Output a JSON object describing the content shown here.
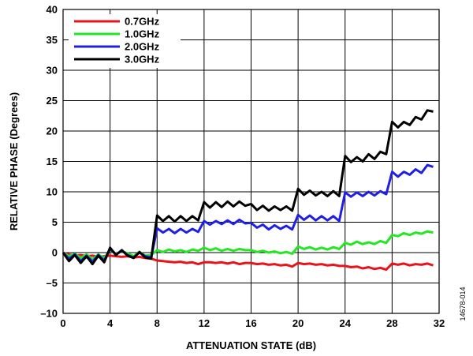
{
  "chart_data": {
    "type": "line",
    "xlabel": "ATTENUATION STATE (dB)",
    "ylabel": "RELATIVE PHASE (Degrees)",
    "xlim": [
      0,
      32
    ],
    "ylim": [
      -10,
      40
    ],
    "xticks": [
      0,
      4,
      8,
      12,
      16,
      20,
      24,
      28,
      32
    ],
    "yticks": [
      -10,
      -5,
      0,
      5,
      10,
      15,
      20,
      25,
      30,
      35,
      40
    ],
    "grid": true,
    "legend_position": "top-left",
    "x": [
      0,
      0.5,
      1,
      1.5,
      2,
      2.5,
      3,
      3.5,
      4,
      4.5,
      5,
      5.5,
      6,
      6.5,
      7,
      7.5,
      8,
      8.5,
      9,
      9.5,
      10,
      10.5,
      11,
      11.5,
      12,
      12.5,
      13,
      13.5,
      14,
      14.5,
      15,
      15.5,
      16,
      16.5,
      17,
      17.5,
      18,
      18.5,
      19,
      19.5,
      20,
      20.5,
      21,
      21.5,
      22,
      22.5,
      23,
      23.5,
      24,
      24.5,
      25,
      25.5,
      26,
      26.5,
      27,
      27.5,
      28,
      28.5,
      29,
      29.5,
      30,
      30.5,
      31,
      31.5
    ],
    "series": [
      {
        "name": "0.7GHz",
        "color": "#e8141b",
        "values": [
          0,
          -0.3,
          -0.5,
          -0.4,
          -0.6,
          -0.5,
          -0.7,
          -0.6,
          -0.5,
          -0.6,
          -0.7,
          -0.6,
          -0.8,
          -0.7,
          -0.9,
          -1.0,
          -1.3,
          -1.4,
          -1.5,
          -1.6,
          -1.5,
          -1.7,
          -1.6,
          -1.9,
          -1.6,
          -1.6,
          -1.7,
          -1.6,
          -1.8,
          -1.6,
          -1.9,
          -1.7,
          -1.7,
          -1.9,
          -1.8,
          -2.0,
          -1.9,
          -2.1,
          -2.0,
          -2.3,
          -1.7,
          -1.9,
          -1.8,
          -2.0,
          -1.9,
          -2.1,
          -2.0,
          -2.2,
          -2.2,
          -2.4,
          -2.3,
          -2.6,
          -2.4,
          -2.7,
          -2.5,
          -2.8,
          -1.8,
          -2.0,
          -1.8,
          -2.1,
          -1.9,
          -2.0,
          -1.8,
          -2.1
        ]
      },
      {
        "name": "1.0GHz",
        "color": "#22e822",
        "values": [
          0,
          -0.6,
          -0.2,
          -0.9,
          -0.3,
          -1.1,
          -0.3,
          -0.9,
          0.4,
          -0.2,
          0.2,
          -0.1,
          -0.6,
          0.1,
          -0.5,
          -0.4,
          0.4,
          0.1,
          0.5,
          0.2,
          0.4,
          0.1,
          0.5,
          0.3,
          0.8,
          0.4,
          0.7,
          0.3,
          0.6,
          0.3,
          0.6,
          0.4,
          0.4,
          0.1,
          0.3,
          0.0,
          0.2,
          -0.1,
          0.1,
          -0.2,
          1.0,
          0.6,
          0.9,
          0.5,
          0.8,
          0.5,
          0.9,
          0.6,
          1.6,
          1.3,
          1.8,
          1.4,
          1.7,
          1.4,
          1.9,
          1.6,
          2.9,
          2.7,
          3.2,
          2.9,
          3.3,
          3.1,
          3.5,
          3.3
        ]
      },
      {
        "name": "2.0GHz",
        "color": "#1f1fe8",
        "values": [
          0,
          -1.0,
          -0.3,
          -1.4,
          -0.5,
          -1.5,
          -0.4,
          -1.3,
          0.6,
          -0.3,
          0.3,
          -0.4,
          -0.8,
          0.0,
          -0.6,
          -0.8,
          4.0,
          3.3,
          3.9,
          3.2,
          3.9,
          3.3,
          3.9,
          3.4,
          5.2,
          4.6,
          5.2,
          4.7,
          5.3,
          4.7,
          5.4,
          4.8,
          4.9,
          4.1,
          4.6,
          3.8,
          4.5,
          3.9,
          4.4,
          3.8,
          6.2,
          5.4,
          6.1,
          5.3,
          6.0,
          5.3,
          6.0,
          5.2,
          9.9,
          9.2,
          9.9,
          9.3,
          10.0,
          9.4,
          10.1,
          9.6,
          13.3,
          12.5,
          13.3,
          12.8,
          13.7,
          13.1,
          14.4,
          14.1
        ]
      },
      {
        "name": "3.0GHz",
        "color": "#000000",
        "values": [
          0,
          -1.4,
          -0.4,
          -1.7,
          -0.6,
          -1.9,
          -0.5,
          -1.6,
          0.8,
          -0.4,
          0.4,
          -0.5,
          -0.9,
          0.1,
          -0.8,
          -1.0,
          6.1,
          5.2,
          6.0,
          5.1,
          6.0,
          5.2,
          6.0,
          5.3,
          8.3,
          7.4,
          8.3,
          7.5,
          8.4,
          7.6,
          8.4,
          7.7,
          8.0,
          7.0,
          7.7,
          6.9,
          7.6,
          7.0,
          7.6,
          6.9,
          10.5,
          9.5,
          10.2,
          9.4,
          10.0,
          9.3,
          10.1,
          9.3,
          15.9,
          14.9,
          15.7,
          15.0,
          16.2,
          15.4,
          16.6,
          16.2,
          21.5,
          20.6,
          21.5,
          21.0,
          22.3,
          21.9,
          23.4,
          23.2
        ]
      }
    ]
  },
  "figure_code": "14678-014"
}
